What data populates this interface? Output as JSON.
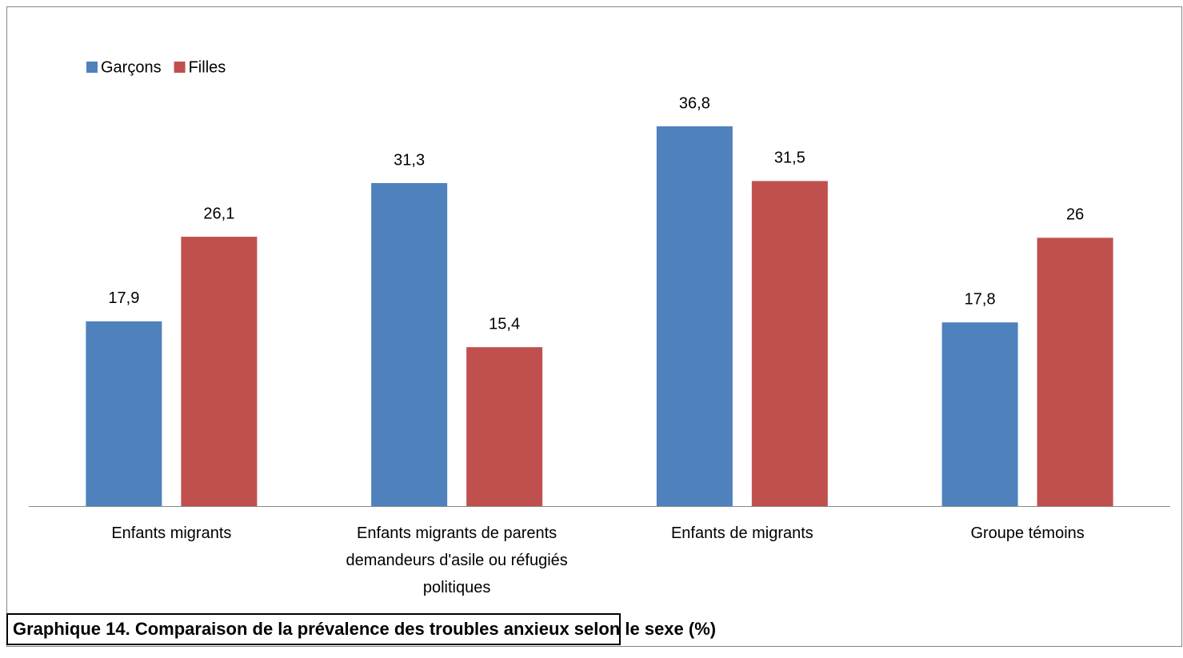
{
  "chart_data": {
    "type": "bar",
    "title": "Graphique 14. Comparaison de la prévalence des troubles anxieux selon le sexe (%)",
    "categories": [
      "Enfants migrants",
      "Enfants migrants de parents demandeurs d'asile ou réfugiés politiques",
      "Enfants de migrants",
      "Groupe témoins"
    ],
    "series": [
      {
        "name": "Garçons",
        "color": "#4f81bd",
        "values": [
          17.9,
          31.3,
          36.8,
          17.8
        ],
        "value_labels": [
          "17,9",
          "31,3",
          "36,8",
          "17,8"
        ]
      },
      {
        "name": "Filles",
        "color": "#c0504d",
        "values": [
          26.1,
          15.4,
          31.5,
          26
        ],
        "value_labels": [
          "26,1",
          "15,4",
          "31,5",
          "26"
        ]
      }
    ],
    "legend": "top-left"
  }
}
